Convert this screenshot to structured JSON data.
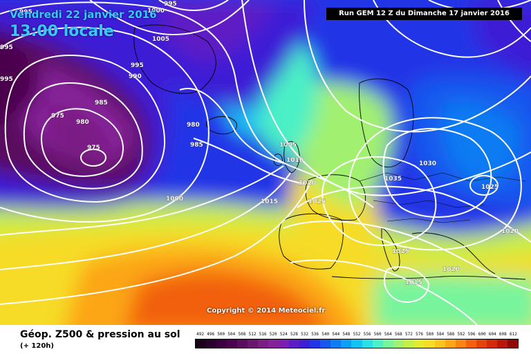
{
  "header": {
    "date": "Vendredi 22 janvier 2016",
    "local_time": "13:00 locale",
    "run_info": "Run GEM 12 Z du Dimanche 17 janvier 2016"
  },
  "copyright": "Copyright © 2014 Meteociel.fr",
  "footer": {
    "title": "Géop. Z500 & pression au sol",
    "subtitle": "(+ 120h)"
  },
  "legend": {
    "values": [
      "492",
      "496",
      "500",
      "504",
      "508",
      "512",
      "516",
      "520",
      "524",
      "528",
      "532",
      "536",
      "540",
      "544",
      "548",
      "552",
      "556",
      "560",
      "564",
      "568",
      "572",
      "576",
      "580",
      "584",
      "588",
      "592",
      "596",
      "600",
      "604",
      "608",
      "612"
    ],
    "colors": [
      "#1a0018",
      "#2c002c",
      "#3c003e",
      "#4c004e",
      "#5a0c5e",
      "#6a1670",
      "#7a1e84",
      "#86219a",
      "#7a1fb0",
      "#5e1cc4",
      "#3d1fd6",
      "#2336e6",
      "#1558ee",
      "#0e7cf2",
      "#0aa0f6",
      "#12c4f4",
      "#2ae0e6",
      "#4cf0c6",
      "#78f49c",
      "#a2f070",
      "#c6ee48",
      "#e4ea2e",
      "#f6dc26",
      "#fcc41e",
      "#fca618",
      "#f88414",
      "#f26010",
      "#e6420c",
      "#d42a0a",
      "#b81808",
      "#900808"
    ]
  },
  "isobars": [
    {
      "label": "995"
    },
    {
      "label": "1000"
    },
    {
      "label": "995"
    },
    {
      "label": "995"
    },
    {
      "label": "1005"
    },
    {
      "label": "995"
    },
    {
      "label": "990"
    },
    {
      "label": "985"
    },
    {
      "label": "975"
    },
    {
      "label": "980"
    },
    {
      "label": "975"
    },
    {
      "label": "980"
    },
    {
      "label": "985"
    },
    {
      "label": "1000"
    },
    {
      "label": "1005"
    },
    {
      "label": "1010"
    },
    {
      "label": "1020"
    },
    {
      "label": "1015"
    },
    {
      "label": "1025"
    },
    {
      "label": "1035"
    },
    {
      "label": "1030"
    },
    {
      "label": "1025"
    },
    {
      "label": "1020"
    },
    {
      "label": "1025"
    },
    {
      "label": "1020"
    },
    {
      "label": "1015"
    },
    {
      "label": "995"
    }
  ]
}
